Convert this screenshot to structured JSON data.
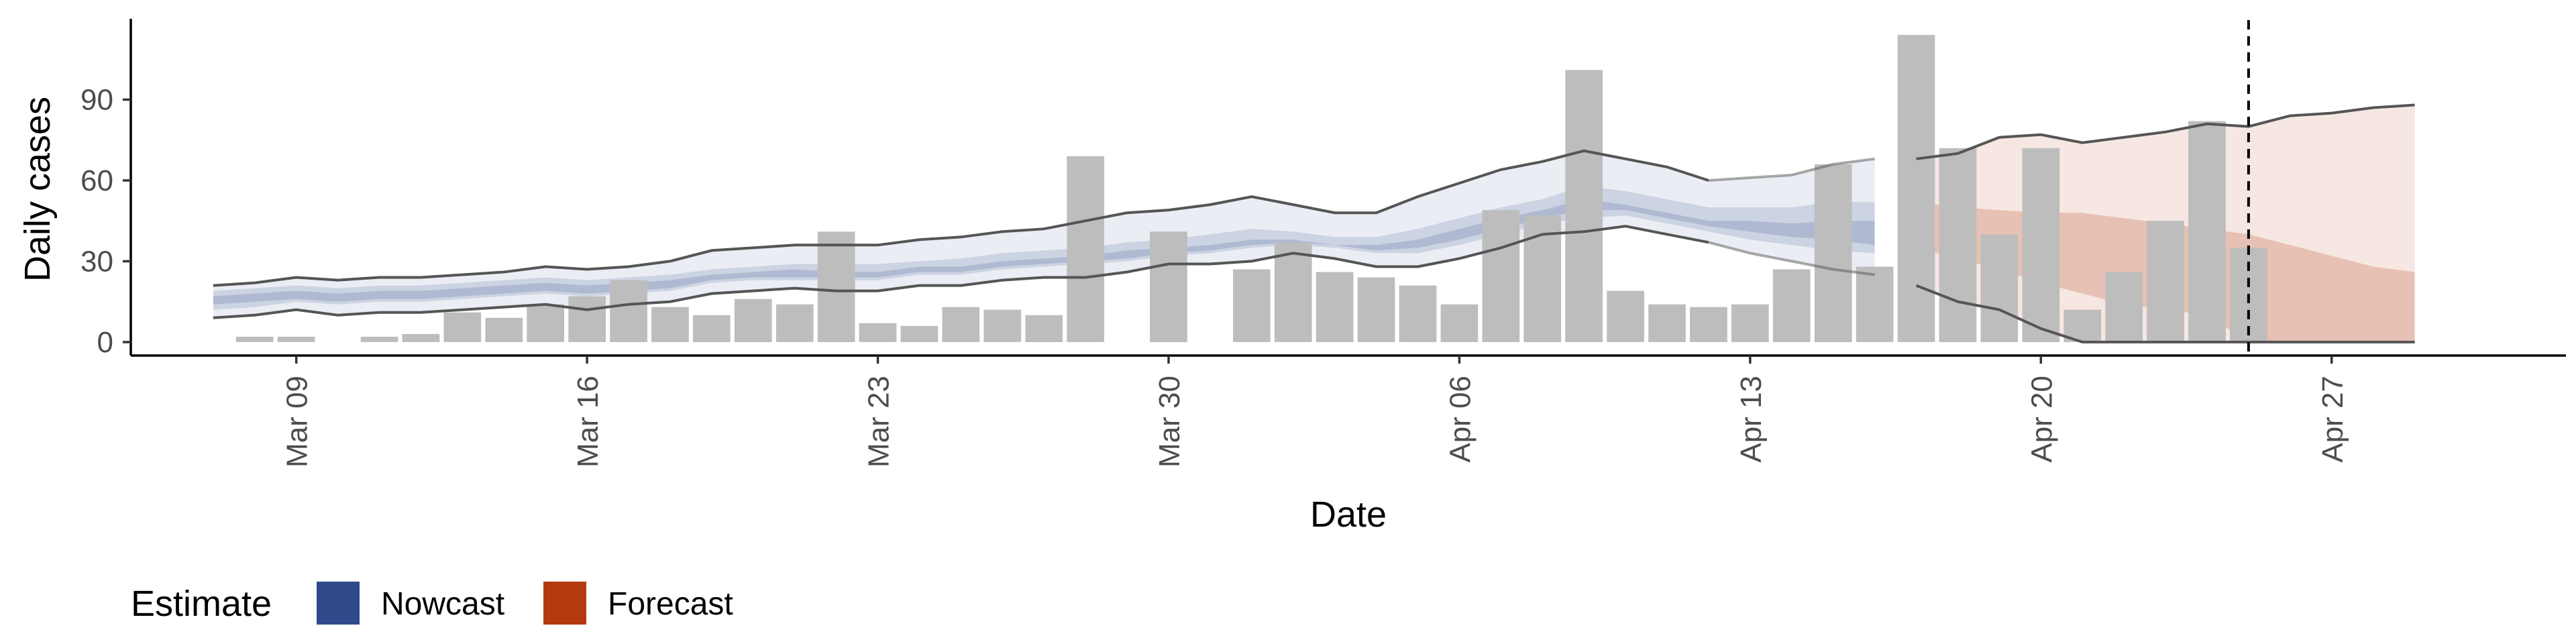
{
  "chart_data": {
    "type": "bar",
    "title": "",
    "xlabel": "Date",
    "ylabel": "Daily cases",
    "x_ticks": [
      "Mar 09",
      "Mar 16",
      "Mar 23",
      "Mar 30",
      "Apr 06",
      "Apr 13",
      "Apr 20",
      "Apr 27"
    ],
    "y_ticks": [
      "0",
      "30",
      "60",
      "90"
    ],
    "ylim": [
      -5,
      120
    ],
    "x_start_date": "2020-03-05",
    "x_range_days": [
      0,
      60
    ],
    "estimate_date": "Apr 25",
    "grid": false,
    "legend": {
      "position": "bottom-left",
      "title": "Estimate",
      "items": [
        {
          "label": "Nowcast",
          "color": "#2f4a8a"
        },
        {
          "label": "Forecast",
          "color": "#b33a0e"
        }
      ]
    },
    "colors": {
      "bars": "#bdbdbd",
      "nowcast": "#2f4a8a",
      "forecast": "#b33a0e",
      "ci_line": "#555555"
    },
    "bars": [
      {
        "date": "Mar 08",
        "value": 2
      },
      {
        "date": "Mar 09",
        "value": 2
      },
      {
        "date": "Mar 10",
        "value": 0
      },
      {
        "date": "Mar 11",
        "value": 2
      },
      {
        "date": "Mar 12",
        "value": 3
      },
      {
        "date": "Mar 13",
        "value": 11
      },
      {
        "date": "Mar 14",
        "value": 9
      },
      {
        "date": "Mar 15",
        "value": 14
      },
      {
        "date": "Mar 16",
        "value": 17
      },
      {
        "date": "Mar 17",
        "value": 23
      },
      {
        "date": "Mar 18",
        "value": 13
      },
      {
        "date": "Mar 19",
        "value": 10
      },
      {
        "date": "Mar 20",
        "value": 16
      },
      {
        "date": "Mar 21",
        "value": 14
      },
      {
        "date": "Mar 22",
        "value": 41
      },
      {
        "date": "Mar 23",
        "value": 7
      },
      {
        "date": "Mar 24",
        "value": 6
      },
      {
        "date": "Mar 25",
        "value": 13
      },
      {
        "date": "Mar 26",
        "value": 12
      },
      {
        "date": "Mar 27",
        "value": 10
      },
      {
        "date": "Mar 28",
        "value": 69
      },
      {
        "date": "Mar 29",
        "value": 0
      },
      {
        "date": "Mar 30",
        "value": 41
      },
      {
        "date": "Mar 31",
        "value": 0
      },
      {
        "date": "Apr 01",
        "value": 27
      },
      {
        "date": "Apr 02",
        "value": 37
      },
      {
        "date": "Apr 03",
        "value": 26
      },
      {
        "date": "Apr 04",
        "value": 24
      },
      {
        "date": "Apr 05",
        "value": 21
      },
      {
        "date": "Apr 06",
        "value": 14
      },
      {
        "date": "Apr 07",
        "value": 49
      },
      {
        "date": "Apr 08",
        "value": 47
      },
      {
        "date": "Apr 09",
        "value": 101
      },
      {
        "date": "Apr 10",
        "value": 19
      },
      {
        "date": "Apr 11",
        "value": 14
      },
      {
        "date": "Apr 12",
        "value": 13
      },
      {
        "date": "Apr 13",
        "value": 14
      },
      {
        "date": "Apr 14",
        "value": 27
      },
      {
        "date": "Apr 15",
        "value": 66
      },
      {
        "date": "Apr 16",
        "value": 28
      },
      {
        "date": "Apr 17",
        "value": 114
      },
      {
        "date": "Apr 18",
        "value": 72
      },
      {
        "date": "Apr 19",
        "value": 40
      },
      {
        "date": "Apr 20",
        "value": 72
      },
      {
        "date": "Apr 21",
        "value": 12
      },
      {
        "date": "Apr 22",
        "value": 26
      },
      {
        "date": "Apr 23",
        "value": 45
      },
      {
        "date": "Apr 24",
        "value": 82
      },
      {
        "date": "Apr 25",
        "value": 35
      }
    ],
    "nowcast": {
      "dates": [
        "Mar 07",
        "Mar 08",
        "Mar 09",
        "Mar 10",
        "Mar 11",
        "Mar 12",
        "Mar 13",
        "Mar 14",
        "Mar 15",
        "Mar 16",
        "Mar 17",
        "Mar 18",
        "Mar 19",
        "Mar 20",
        "Mar 21",
        "Mar 22",
        "Mar 23",
        "Mar 24",
        "Mar 25",
        "Mar 26",
        "Mar 27",
        "Mar 28",
        "Mar 29",
        "Mar 30",
        "Mar 31",
        "Apr 01",
        "Apr 02",
        "Apr 03",
        "Apr 04",
        "Apr 05",
        "Apr 06",
        "Apr 07",
        "Apr 08",
        "Apr 09",
        "Apr 10",
        "Apr 11",
        "Apr 12",
        "Apr 13",
        "Apr 14",
        "Apr 15",
        "Apr 16"
      ],
      "upper90": [
        21,
        22,
        24,
        23,
        24,
        24,
        25,
        26,
        28,
        27,
        28,
        30,
        34,
        35,
        36,
        36,
        36,
        38,
        39,
        41,
        42,
        45,
        48,
        49,
        51,
        54,
        51,
        48,
        48,
        54,
        59,
        64,
        67,
        71,
        68,
        65,
        60,
        61,
        62,
        66,
        68
      ],
      "lower90": [
        9,
        10,
        12,
        10,
        11,
        11,
        12,
        13,
        14,
        12,
        14,
        15,
        18,
        19,
        20,
        19,
        19,
        21,
        21,
        23,
        24,
        24,
        26,
        29,
        29,
        30,
        33,
        31,
        28,
        28,
        31,
        35,
        40,
        41,
        43,
        40,
        37,
        33,
        30,
        27,
        25
      ],
      "upper50": [
        19,
        20,
        21,
        20,
        21,
        21,
        22,
        23,
        24,
        23,
        24,
        25,
        27,
        28,
        29,
        29,
        29,
        30,
        31,
        33,
        34,
        35,
        37,
        38,
        40,
        42,
        41,
        39,
        39,
        42,
        46,
        50,
        53,
        58,
        56,
        53,
        50,
        50,
        50,
        52,
        52
      ],
      "lower50": [
        12,
        13,
        15,
        14,
        15,
        15,
        16,
        17,
        18,
        17,
        18,
        19,
        22,
        23,
        23,
        23,
        23,
        25,
        25,
        27,
        28,
        29,
        30,
        32,
        33,
        35,
        36,
        35,
        33,
        33,
        36,
        40,
        44,
        46,
        47,
        44,
        41,
        38,
        36,
        34,
        33
      ],
      "upper20": [
        17,
        18,
        19,
        18,
        19,
        19,
        20,
        21,
        22,
        21,
        22,
        23,
        25,
        26,
        27,
        26,
        26,
        28,
        28,
        30,
        31,
        32,
        34,
        35,
        36,
        38,
        38,
        36,
        36,
        38,
        42,
        46,
        49,
        53,
        51,
        48,
        45,
        45,
        44,
        45,
        45
      ],
      "lower20": [
        14,
        15,
        16,
        15,
        16,
        16,
        17,
        18,
        19,
        18,
        19,
        20,
        23,
        24,
        24,
        24,
        24,
        26,
        26,
        28,
        29,
        30,
        31,
        33,
        34,
        36,
        37,
        36,
        34,
        35,
        38,
        42,
        46,
        49,
        49,
        46,
        43,
        41,
        39,
        38,
        36
      ]
    },
    "forecast": {
      "dates": [
        "Apr 17",
        "Apr 18",
        "Apr 19",
        "Apr 20",
        "Apr 21",
        "Apr 22",
        "Apr 23",
        "Apr 24",
        "Apr 25",
        "Apr 26",
        "Apr 27",
        "Apr 28",
        "Apr 29"
      ],
      "upper90": [
        68,
        70,
        76,
        77,
        74,
        76,
        78,
        81,
        80,
        84,
        85,
        87,
        88
      ],
      "lower90": [
        21,
        15,
        12,
        5,
        0,
        0,
        0,
        0,
        0,
        0,
        0,
        0,
        0
      ],
      "upper50": [
        52,
        50,
        49,
        48,
        48,
        46,
        44,
        42,
        40,
        36,
        32,
        28,
        26
      ],
      "lower50": [
        35,
        31,
        27,
        22,
        18,
        14,
        12,
        10,
        0,
        0,
        0,
        0,
        0
      ]
    }
  }
}
